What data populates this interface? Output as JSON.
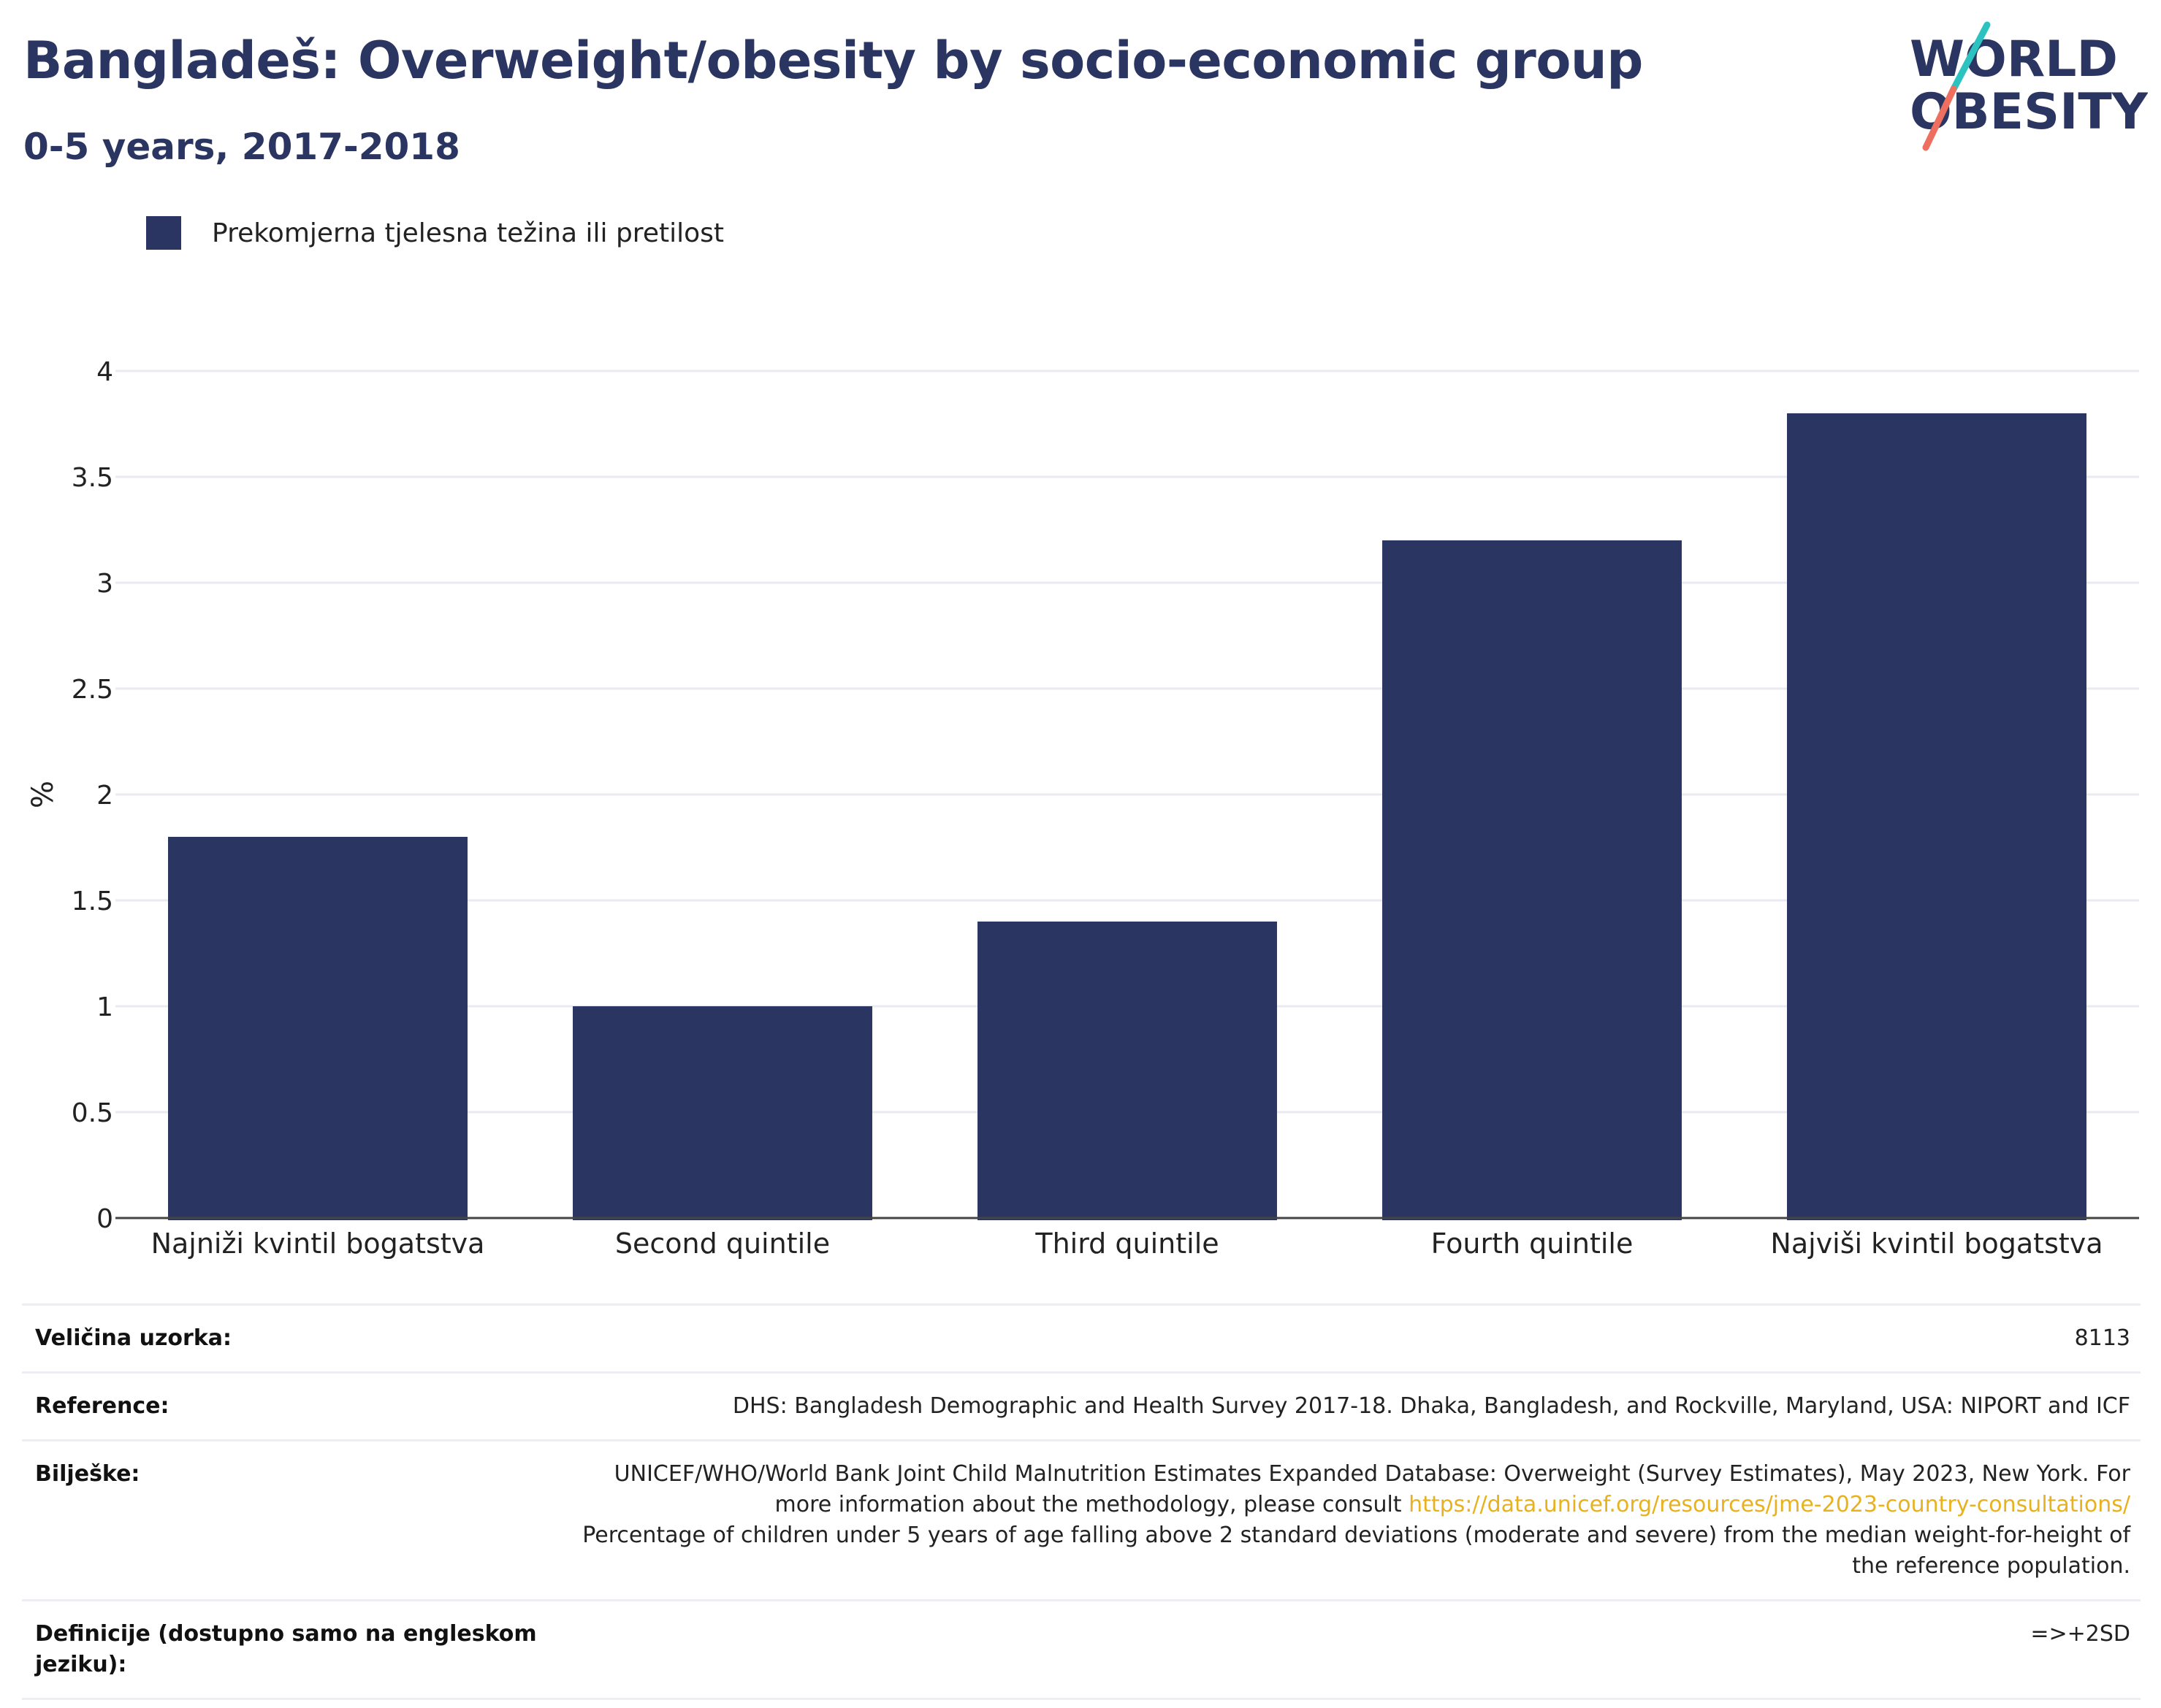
{
  "header": {
    "title": "Bangladeš: Overweight/obesity by socio-economic group",
    "subtitle": "0-5 years, 2017-2018"
  },
  "logo": {
    "line1": "WORLD",
    "line2": "OBESITY",
    "accent_colors": [
      "#2cc2c0",
      "#ee6f5f"
    ]
  },
  "legend": {
    "label": "Prekomjerna tjelesna težina ili pretilost",
    "color": "#2b3561"
  },
  "chart_data": {
    "type": "bar",
    "categories": [
      "Najniži kvintil bogatstva",
      "Second quintile",
      "Third quintile",
      "Fourth quintile",
      "Najviši kvintil bogatstva"
    ],
    "series": [
      {
        "name": "Prekomjerna tjelesna težina ili pretilost",
        "values": [
          1.8,
          1.0,
          1.4,
          3.2,
          3.8
        ]
      }
    ],
    "ylabel": "%",
    "ylim": [
      0,
      4
    ],
    "yticks": [
      0,
      0.5,
      1,
      1.5,
      2,
      2.5,
      3,
      3.5,
      4
    ],
    "grid": true,
    "legend_position": "top-left",
    "bar_color": "#2b3561"
  },
  "info": {
    "sample_label": "Veličina uzorka:",
    "sample_value": "8113",
    "reference_label": "Reference:",
    "reference_value": "DHS: Bangladesh Demographic and Health Survey 2017-18. Dhaka, Bangladesh, and Rockville, Maryland, USA: NIPORT and ICF",
    "notes_label": "Bilješke:",
    "notes_text_1": "UNICEF/WHO/World Bank Joint Child Malnutrition Estimates Expanded Database: Overweight (Survey Estimates), May 2023, New York. For more information about the methodology, please consult ",
    "notes_link": "https://data.unicef.org/resources/jme-2023-country-consultations/",
    "notes_text_2": "Percentage of children under 5 years of age falling above 2 standard deviations (moderate and severe) from the median weight-for-height of the reference population.",
    "definitions_label": "Definicije (dostupno samo na engleskom jeziku):",
    "definitions_value": "=>+2SD"
  }
}
